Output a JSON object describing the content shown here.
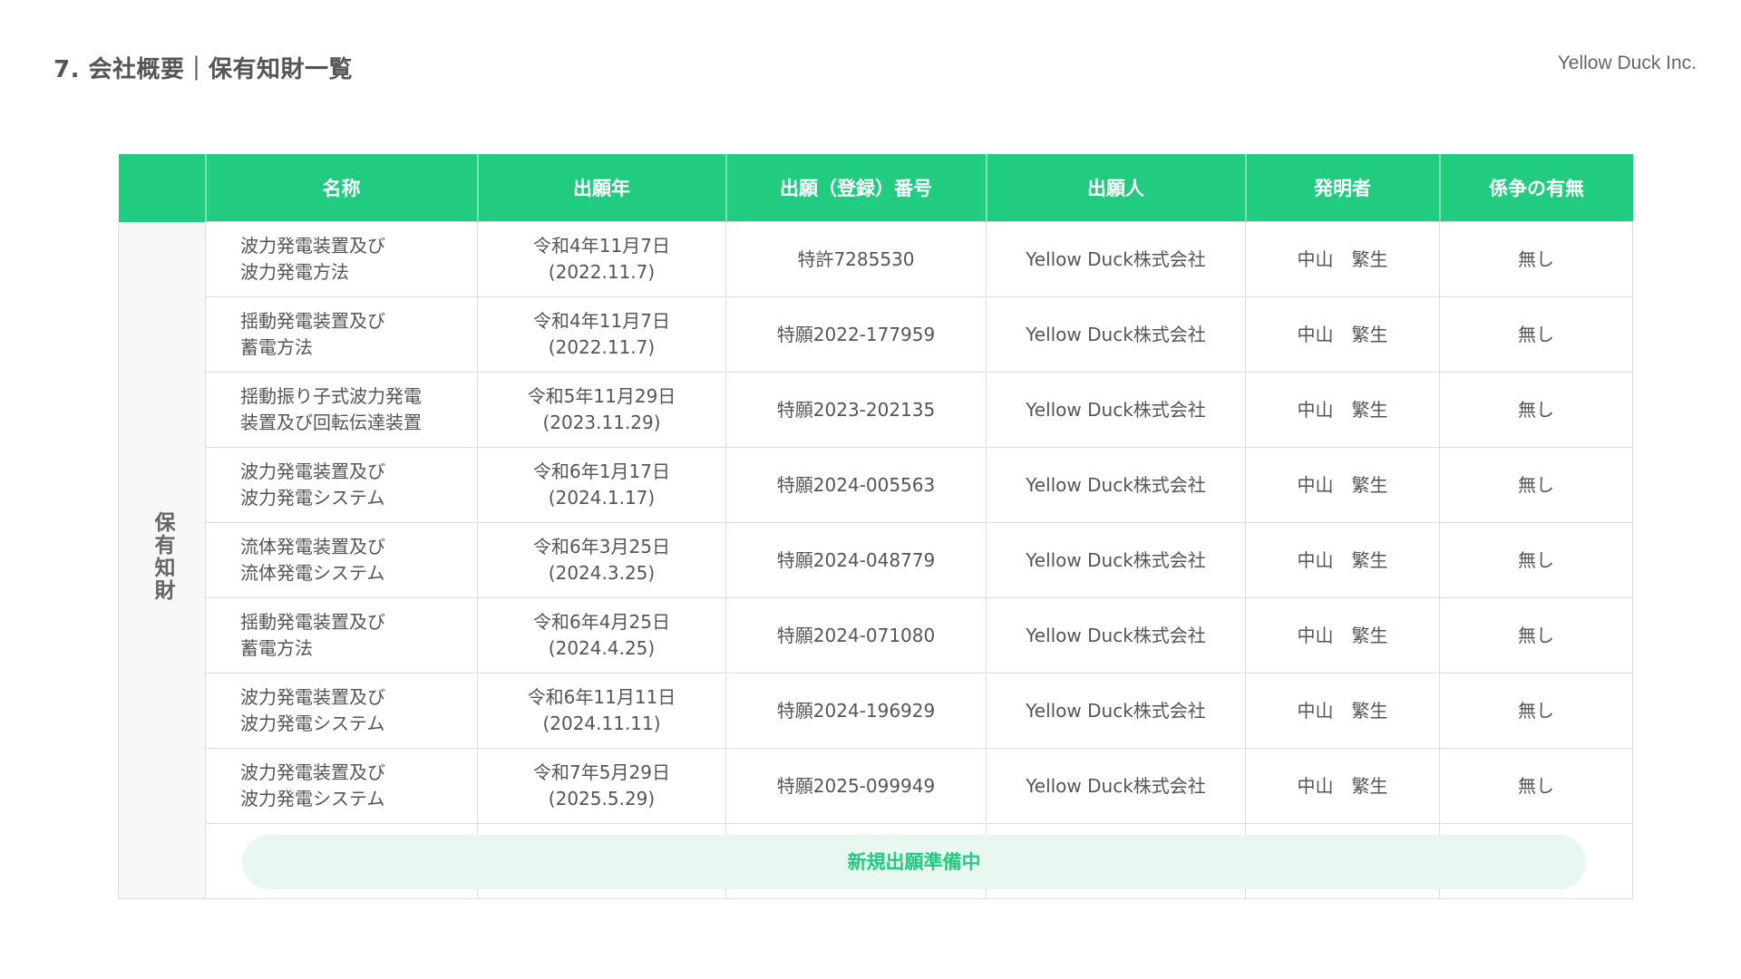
{
  "header": {
    "title": "7. 会社概要｜保有知財一覧",
    "company": "Yellow Duck Inc."
  },
  "colors": {
    "accent": "#21CB80",
    "pill_bg": "#E8F7EF"
  },
  "table": {
    "side_label": "保有知財",
    "columns": [
      "名称",
      "出願年",
      "出願（登録）番号",
      "出願人",
      "発明者",
      "係争の有無"
    ],
    "rows": [
      {
        "name": [
          "波力発電装置及び",
          "波力発電方法"
        ],
        "date": [
          "令和4年11月7日",
          "(2022.11.7)"
        ],
        "number": "特許7285530",
        "applicant": "Yellow Duck株式会社",
        "inventor": "中山　繁生",
        "dispute": "無し"
      },
      {
        "name": [
          "揺動発電装置及び",
          "蓄電方法"
        ],
        "date": [
          "令和4年11月7日",
          "(2022.11.7)"
        ],
        "number": "特願2022-177959",
        "applicant": "Yellow Duck株式会社",
        "inventor": "中山　繁生",
        "dispute": "無し"
      },
      {
        "name": [
          "揺動振り子式波力発電",
          "装置及び回転伝達装置"
        ],
        "date": [
          "令和5年11月29日",
          "(2023.11.29)"
        ],
        "number": "特願2023-202135",
        "applicant": "Yellow Duck株式会社",
        "inventor": "中山　繁生",
        "dispute": "無し"
      },
      {
        "name": [
          "波力発電装置及び",
          "波力発電システム"
        ],
        "date": [
          "令和6年1月17日",
          "(2024.1.17)"
        ],
        "number": "特願2024-005563",
        "applicant": "Yellow Duck株式会社",
        "inventor": "中山　繁生",
        "dispute": "無し"
      },
      {
        "name": [
          "流体発電装置及び",
          "流体発電システム"
        ],
        "date": [
          "令和6年3月25日",
          "(2024.3.25)"
        ],
        "number": "特願2024-048779",
        "applicant": "Yellow Duck株式会社",
        "inventor": "中山　繁生",
        "dispute": "無し"
      },
      {
        "name": [
          "揺動発電装置及び",
          "蓄電方法"
        ],
        "date": [
          "令和6年4月25日",
          "(2024.4.25)"
        ],
        "number": "特願2024-071080",
        "applicant": "Yellow Duck株式会社",
        "inventor": "中山　繁生",
        "dispute": "無し"
      },
      {
        "name": [
          "波力発電装置及び",
          "波力発電システム"
        ],
        "date": [
          "令和6年11月11日",
          "(2024.11.11)"
        ],
        "number": "特願2024-196929",
        "applicant": "Yellow Duck株式会社",
        "inventor": "中山　繁生",
        "dispute": "無し"
      },
      {
        "name": [
          "波力発電装置及び",
          "波力発電システム"
        ],
        "date": [
          "令和7年5月29日",
          "(2025.5.29)"
        ],
        "number": "特願2025-099949",
        "applicant": "Yellow Duck株式会社",
        "inventor": "中山　繁生",
        "dispute": "無し"
      }
    ],
    "pending_label": "新規出願準備中"
  }
}
